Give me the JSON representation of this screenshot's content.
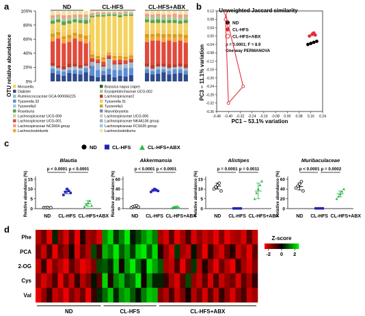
{
  "figure": {
    "panel_letters": [
      "a",
      "b",
      "c",
      "d"
    ]
  },
  "chart_data": [
    {
      "panel": "a",
      "type": "bar",
      "stacked": true,
      "ylabel": "OTU relative abundance",
      "ytick_labels": [
        "0%",
        "20%",
        "40%",
        "60%",
        "80%",
        "100%"
      ],
      "ylim": [
        0,
        100
      ],
      "groups": [
        "ND",
        "CL-HFS",
        "CL-HFS+ABX"
      ],
      "samples_per_group": 8,
      "legend_left": [
        {
          "label": "Moraxella",
          "color": "#f4d35e"
        },
        {
          "label": "Dialister",
          "color": "#2e4a8a"
        },
        {
          "label": "Ruminococcaceae GCA-900066225",
          "color": "#a3b8c8"
        },
        {
          "label": "Tyzzerella 32",
          "color": "#5b8fd6"
        },
        {
          "label": "Tyzzerella2",
          "color": "#9fc3e8"
        },
        {
          "label": "Roseburia",
          "color": "#5a9c5a"
        },
        {
          "label": "Lachnospiraceae UCG-008",
          "color": "#b8dca0"
        },
        {
          "label": "Lachnospiraceae UCG-001",
          "color": "#e04a3c"
        },
        {
          "label": "Lachnospiraceae NC2004 group",
          "color": "#f59a8e"
        },
        {
          "label": "Lachnoclostridumb",
          "color": "#f7a33a"
        }
      ],
      "legend_right": [
        {
          "label": "Brassica napus (rape)",
          "color": "#2d5e2d"
        },
        {
          "label": "Erysipelotrichaceae UCG-002",
          "color": "#9cd08a"
        },
        {
          "label": "Lachnospiraceae2",
          "color": "#c0392b"
        },
        {
          "label": "Tyzzerella 31",
          "color": "#f6c85f"
        },
        {
          "label": "Tyzzerella1",
          "color": "#d4a017"
        },
        {
          "label": "Marvinbryantia",
          "color": "#6c8ebf"
        },
        {
          "label": "Lachnospiraceae UCG-006",
          "color": "#d9c7a7"
        },
        {
          "label": "Lachnospiraceae NK4A136 group",
          "color": "#8fb3d9"
        },
        {
          "label": "Lachnospiraceae FCS020 group",
          "color": "#a0c4e0"
        },
        {
          "label": "Lachnoclostridiums",
          "color": "#f3e4a0"
        }
      ],
      "stack_order": [
        "#2e4a8a",
        "#5b8fd6",
        "#a3b8c8",
        "#c0392b",
        "#e04a3c",
        "#f7a33a",
        "#d4a017",
        "#f6c85f",
        "#f4d35e",
        "#5a9c5a",
        "#9cd08a",
        "#f59a8e",
        "#f3e4a0"
      ],
      "samples": [
        [
          12,
          6,
          4,
          5,
          30,
          6,
          5,
          6,
          8,
          4,
          4,
          4,
          6
        ],
        [
          10,
          5,
          4,
          4,
          38,
          5,
          4,
          6,
          8,
          4,
          3,
          4,
          5
        ],
        [
          8,
          6,
          3,
          5,
          32,
          6,
          4,
          6,
          10,
          5,
          4,
          5,
          6
        ],
        [
          12,
          4,
          4,
          6,
          30,
          5,
          5,
          8,
          8,
          4,
          4,
          4,
          6
        ],
        [
          11,
          5,
          5,
          5,
          35,
          4,
          4,
          6,
          9,
          4,
          3,
          4,
          5
        ],
        [
          10,
          5,
          4,
          5,
          33,
          5,
          5,
          7,
          9,
          4,
          4,
          4,
          5
        ],
        [
          13,
          6,
          3,
          4,
          28,
          6,
          5,
          7,
          10,
          5,
          4,
          4,
          5
        ],
        [
          9,
          5,
          4,
          5,
          34,
          5,
          4,
          8,
          9,
          5,
          3,
          4,
          5
        ],
        [
          8,
          14,
          6,
          2,
          3,
          2,
          3,
          5,
          48,
          2,
          2,
          2,
          3
        ],
        [
          6,
          10,
          10,
          2,
          3,
          2,
          3,
          6,
          50,
          2,
          2,
          2,
          2
        ],
        [
          9,
          6,
          6,
          3,
          4,
          3,
          3,
          5,
          53,
          2,
          2,
          2,
          2
        ],
        [
          10,
          8,
          14,
          2,
          3,
          2,
          2,
          4,
          48,
          2,
          2,
          1,
          2
        ],
        [
          6,
          10,
          8,
          2,
          4,
          3,
          3,
          5,
          52,
          2,
          2,
          1,
          2
        ],
        [
          8,
          8,
          8,
          3,
          4,
          2,
          3,
          5,
          50,
          3,
          2,
          2,
          2
        ],
        [
          7,
          12,
          6,
          2,
          3,
          2,
          3,
          6,
          52,
          2,
          2,
          2,
          1
        ],
        [
          9,
          10,
          8,
          2,
          3,
          2,
          3,
          5,
          51,
          2,
          2,
          1,
          2
        ],
        [
          12,
          5,
          4,
          5,
          30,
          6,
          5,
          7,
          10,
          4,
          4,
          4,
          4
        ],
        [
          10,
          5,
          3,
          6,
          34,
          5,
          4,
          6,
          10,
          4,
          4,
          4,
          5
        ],
        [
          11,
          6,
          4,
          5,
          32,
          5,
          5,
          6,
          9,
          5,
          4,
          4,
          4
        ],
        [
          13,
          4,
          4,
          5,
          30,
          6,
          5,
          7,
          9,
          4,
          4,
          4,
          5
        ],
        [
          10,
          5,
          4,
          6,
          33,
          5,
          4,
          6,
          10,
          4,
          4,
          4,
          5
        ],
        [
          11,
          6,
          3,
          5,
          31,
          6,
          5,
          6,
          10,
          4,
          4,
          5,
          4
        ],
        [
          12,
          5,
          4,
          5,
          32,
          5,
          4,
          6,
          9,
          4,
          4,
          5,
          5
        ],
        [
          10,
          5,
          4,
          6,
          30,
          6,
          5,
          7,
          10,
          4,
          4,
          4,
          5
        ]
      ]
    },
    {
      "panel": "b",
      "type": "scatter",
      "title": "Unweighted Jaccard similarity",
      "xlabel": "PC1 – 53.1% variation",
      "ylabel": "PC3 – 11.1% variation",
      "xlim": [
        -0.48,
        0.24
      ],
      "ylim": [
        -0.36,
        0.12
      ],
      "xticks": [
        "-0.48",
        "-0.40",
        "-0.32",
        "-0.24",
        "-0.16",
        "-0.08",
        "0.00",
        "0.08",
        "0.16",
        "0.24"
      ],
      "yticks": [
        "0.12",
        "0.08",
        "0.04",
        "0.00",
        "-0.04",
        "-0.08",
        "-0.12",
        "-0.16",
        "-0.20",
        "-0.24",
        "-0.28",
        "-0.32",
        "-0.36"
      ],
      "stat_line1": "p = 0.0001; F = 8.9",
      "stat_line2": "One-way PERMANOVA",
      "legend": [
        "ND",
        "CL-HFS",
        "CL-HFS+ABX"
      ],
      "series": [
        {
          "name": "ND",
          "color": "#000000",
          "points": [
            [
              0.14,
              -0.04
            ],
            [
              0.16,
              -0.035
            ],
            [
              0.18,
              -0.03
            ],
            [
              0.2,
              -0.025
            ]
          ]
        },
        {
          "name": "CL-HFS",
          "color": "#e0303c",
          "points": [
            [
              0.15,
              0.0
            ],
            [
              0.17,
              0.01
            ],
            [
              0.18,
              0.015
            ],
            [
              0.19,
              0.005
            ]
          ]
        },
        {
          "name": "CL-HFS+ABX",
          "color": "#e0303c",
          "hollow": true,
          "points": [
            [
              -0.42,
              0.11
            ],
            [
              -0.42,
              0.08
            ],
            [
              -0.4,
              0.05
            ],
            [
              -0.4,
              -0.32
            ],
            [
              -0.3,
              -0.24
            ]
          ]
        }
      ]
    },
    {
      "panel": "c",
      "type": "scatter",
      "legend": [
        "ND",
        "CL-HFS",
        "CL-HFS+ABX"
      ],
      "ylabel": "Relative abundance (%)",
      "categories": [
        "ND",
        "CL-HFS",
        "CL-HFS+ABX"
      ],
      "subplots": [
        {
          "title": "Blautia",
          "ylim": [
            0,
            15
          ],
          "yticks": [
            "0",
            "5",
            "10",
            "15"
          ],
          "p_left": "p < 0.0001",
          "p_right": "p < 0.0001",
          "values": [
            [
              0.5,
              0.4,
              0.6,
              0.3,
              0.5
            ],
            [
              7,
              8.5,
              10,
              9,
              8
            ],
            [
              1,
              2,
              3,
              4,
              1.5
            ]
          ],
          "mean": [
            0.5,
            8.8,
            2.5
          ],
          "sd": [
            0.2,
            1.2,
            1.5
          ]
        },
        {
          "title": "Akkermansia",
          "ylim": [
            0,
            60
          ],
          "yticks": [
            "0",
            "20",
            "40",
            "60"
          ],
          "p_left": "p < 0.0001",
          "p_right": "p < 0.0001",
          "values": [
            [
              2,
              4,
              5,
              6,
              3
            ],
            [
              34,
              37,
              40,
              38,
              36
            ],
            [
              1,
              3,
              4,
              5,
              2
            ]
          ],
          "mean": [
            4,
            38,
            3
          ],
          "sd": [
            1.5,
            2.5,
            1.5
          ]
        },
        {
          "title": "Alistipes",
          "ylim": [
            0,
            15
          ],
          "yticks": [
            "0",
            "5",
            "10",
            "15"
          ],
          "p_left": "p = 0.0001",
          "p_right": "p = 0.0011",
          "values": [
            [
              10,
              11,
              12,
              13,
              9
            ],
            [
              0.1,
              0.1,
              0.1,
              0.1,
              0.1
            ],
            [
              5,
              8,
              10,
              12,
              14
            ]
          ],
          "mean": [
            11.5,
            0.1,
            9
          ],
          "sd": [
            1.5,
            0.05,
            4
          ]
        },
        {
          "title": "Muribaculaceae",
          "ylim": [
            0,
            60
          ],
          "yticks": [
            "0",
            "20",
            "40",
            "60"
          ],
          "p_left": "p < 0.0001",
          "p_right": "p = 0.0002",
          "values": [
            [
              42,
              46,
              50,
              55,
              36
            ],
            [
              0.5,
              0.5,
              0.5,
              0.5,
              0.5
            ],
            [
              20,
              25,
              30,
              35,
              40
            ]
          ],
          "mean": [
            45,
            0.5,
            30
          ],
          "sd": [
            7,
            0.2,
            6
          ]
        }
      ]
    },
    {
      "panel": "d",
      "type": "heatmap",
      "rows": [
        "Phe",
        "PCA",
        "2-OG",
        "Cys",
        "Val"
      ],
      "group_labels": [
        "ND",
        "CL-HFS",
        "CL-HFS+ABX"
      ],
      "colorbar_title": "Z-score",
      "colorbar_ticks": [
        "-2",
        "0",
        "2"
      ],
      "values": [
        [
          -2.0,
          -1.2,
          -2.6,
          0.4,
          -1.6,
          -2.4,
          -1.0,
          -2.6,
          -0.4,
          -1.8,
          -1.6,
          -2.4,
          1.6,
          2.4,
          0.6,
          1.4,
          2.6,
          0.2,
          0.8,
          1.6,
          2.2,
          1.4,
          -1.8,
          -2.4,
          -1.0,
          -2.6,
          -1.8,
          -0.8,
          -2.4,
          -1.6,
          -2.2,
          -1.8,
          -2.6,
          -1.4,
          -2.8,
          -2.0,
          -1.8,
          -2.4,
          -1.0,
          -2.2
        ],
        [
          -1.4,
          -2.2,
          -0.8,
          -2.6,
          -1.2,
          -1.8,
          -0.2,
          -2.4,
          -1.2,
          -2.0,
          0.8,
          -0.6,
          2.0,
          1.4,
          2.8,
          1.0,
          1.8,
          0.6,
          2.2,
          2.8,
          1.0,
          2.4,
          -0.4,
          -1.6,
          -2.4,
          0.6,
          -1.8,
          -2.2,
          0.2,
          -1.4,
          -2.6,
          -0.6,
          -1.8,
          -2.4,
          -1.2,
          -0.4,
          -2.2,
          -1.6,
          -2.6,
          -1.0
        ],
        [
          -2.2,
          -0.6,
          -2.8,
          -1.4,
          -2.0,
          -2.6,
          -1.0,
          -1.8,
          -2.6,
          -2.2,
          -1.4,
          0.8,
          1.0,
          0.4,
          2.2,
          -0.2,
          1.6,
          2.6,
          1.2,
          0.2,
          2.8,
          1.8,
          1.0,
          -1.8,
          -2.2,
          -0.8,
          -2.6,
          -1.2,
          0.6,
          -2.0,
          -0.4,
          -1.6,
          -2.6,
          -1.2,
          -2.0,
          -2.8,
          -0.6,
          -1.8,
          -2.4,
          -1.4
        ],
        [
          -1.6,
          -2.4,
          -1.8,
          -0.8,
          -2.6,
          -1.2,
          -2.2,
          -0.6,
          -2.0,
          -1.4,
          0.2,
          -1.0,
          2.4,
          -0.4,
          1.4,
          2.0,
          0.8,
          1.2,
          2.6,
          -0.2,
          1.6,
          0.4,
          0.4,
          -0.6,
          -1.8,
          -2.4,
          -1.0,
          0.8,
          -1.6,
          -2.2,
          -1.0,
          -2.4,
          -0.8,
          -2.2,
          -1.6,
          -1.2,
          -2.4,
          -1.0,
          -1.8,
          -0.6
        ],
        [
          -2.6,
          -1.6,
          -0.6,
          -2.2,
          -1.8,
          -2.8,
          -1.4,
          -2.0,
          -1.2,
          -2.6,
          -0.6,
          0.4,
          1.2,
          2.2,
          0.4,
          1.6,
          2.0,
          1.0,
          0.2,
          1.4,
          2.2,
          2.0,
          -1.4,
          -2.0,
          -0.8,
          -2.2,
          -1.4,
          -0.2,
          -2.0,
          -1.2,
          -2.4,
          -1.0,
          -2.2,
          -0.6,
          -1.6,
          -2.4,
          -1.4,
          -0.8,
          -2.2,
          -1.8
        ]
      ]
    }
  ]
}
